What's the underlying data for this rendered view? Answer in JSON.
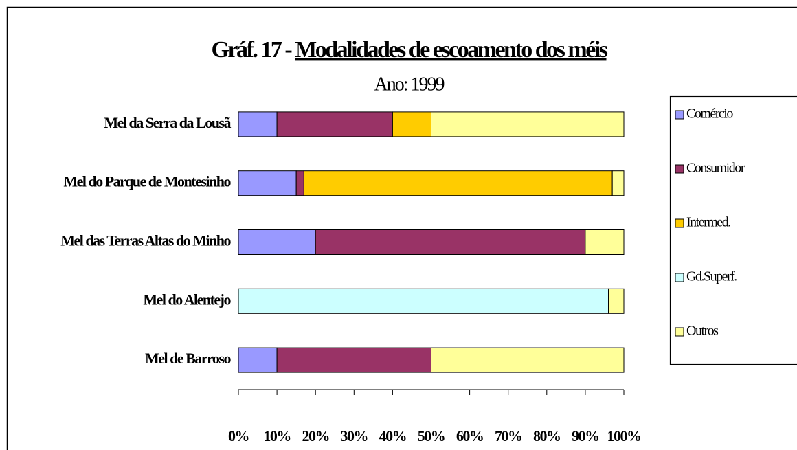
{
  "chart_data": {
    "type": "stacked_bar_horizontal",
    "title": "Gráf. 17 - ",
    "title_underlined": "Modalidades de escoamento dos méis",
    "subtitle": "Ano: 1999",
    "categories": [
      "Mel da Serra da Lousã",
      "Mel do Parque de Montesinho",
      "Mel das Terras Altas do Minho",
      "Mel do Alentejo",
      "Mel de Barroso"
    ],
    "series": [
      {
        "name": "Comércio",
        "color": "#9999ff",
        "values": [
          10,
          15,
          20,
          0,
          10
        ]
      },
      {
        "name": "Consumidor",
        "color": "#993366",
        "values": [
          30,
          2,
          70,
          0,
          40
        ]
      },
      {
        "name": "Intermed.",
        "color": "#ffcc00",
        "values": [
          10,
          80,
          0,
          0,
          0
        ]
      },
      {
        "name": "Gd.Superf.",
        "color": "#ccffff",
        "values": [
          0,
          0,
          0,
          96,
          0
        ]
      },
      {
        "name": "Outros",
        "color": "#ffff99",
        "values": [
          50,
          3,
          10,
          4,
          50
        ]
      }
    ],
    "xlim": [
      0,
      100
    ],
    "xticks": [
      {
        "value": 0,
        "label": "0%"
      },
      {
        "value": 10,
        "label": "10%"
      },
      {
        "value": 20,
        "label": "20%"
      },
      {
        "value": 30,
        "label": "30%"
      },
      {
        "value": 40,
        "label": "40%"
      },
      {
        "value": 50,
        "label": "50%"
      },
      {
        "value": 60,
        "label": "60%"
      },
      {
        "value": 70,
        "label": "70%"
      },
      {
        "value": 80,
        "label": "80%"
      },
      {
        "value": 90,
        "label": "90%"
      },
      {
        "value": 100,
        "label": "100%"
      }
    ],
    "legend": "right"
  }
}
